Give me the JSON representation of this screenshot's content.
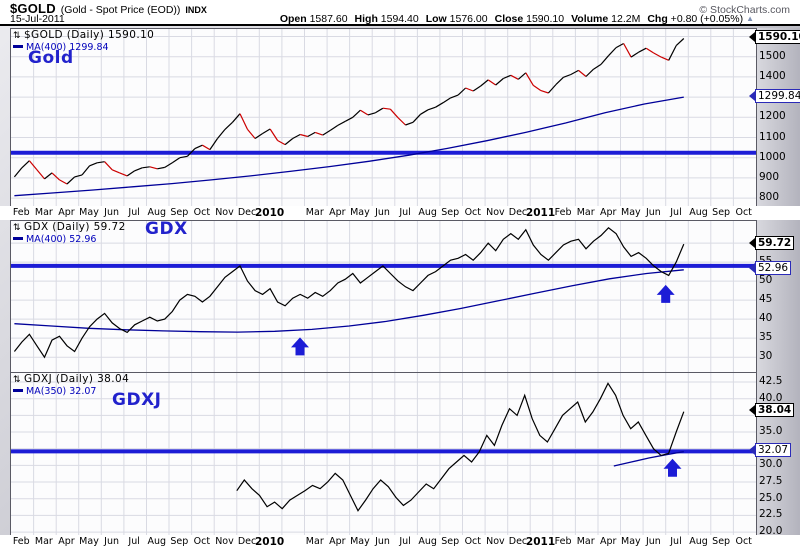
{
  "header": {
    "symbol": "$GOLD",
    "description": "(Gold - Spot Price (EOD))",
    "exchange": "INDX",
    "date": "15-Jul-2011",
    "quote_fields": [
      {
        "label": "Open",
        "value": "1587.60"
      },
      {
        "label": "High",
        "value": "1594.40"
      },
      {
        "label": "Low",
        "value": "1576.00"
      },
      {
        "label": "Close",
        "value": "1590.10"
      },
      {
        "label": "Volume",
        "value": "12.2M"
      },
      {
        "label": "Chg",
        "value": "+0.80 (+0.05%)"
      }
    ],
    "change_icon": "▲",
    "credit": "© StockCharts.com"
  },
  "colors": {
    "annotation_blue": "#1c1cd6",
    "ma_navy": "#000099",
    "price_black": "#000000",
    "price_red": "#cc0000",
    "grid": "#d9dae3"
  },
  "x_axis": {
    "labels": [
      {
        "t": "Feb",
        "s": 0
      },
      {
        "t": "Mar",
        "s": 1
      },
      {
        "t": "Apr",
        "s": 2
      },
      {
        "t": "May",
        "s": 3
      },
      {
        "t": "Jun",
        "s": 4
      },
      {
        "t": "Jul",
        "s": 5
      },
      {
        "t": "Aug",
        "s": 6
      },
      {
        "t": "Sep",
        "s": 7
      },
      {
        "t": "Oct",
        "s": 8
      },
      {
        "t": "Nov",
        "s": 9
      },
      {
        "t": "Dec",
        "s": 10
      },
      {
        "t": "2010",
        "s": 11,
        "bold": true
      },
      {
        "t": "Mar",
        "s": 13
      },
      {
        "t": "Apr",
        "s": 14
      },
      {
        "t": "May",
        "s": 15
      },
      {
        "t": "Jun",
        "s": 16
      },
      {
        "t": "Jul",
        "s": 17
      },
      {
        "t": "Aug",
        "s": 18
      },
      {
        "t": "Sep",
        "s": 19
      },
      {
        "t": "Oct",
        "s": 20
      },
      {
        "t": "Nov",
        "s": 21
      },
      {
        "t": "Dec",
        "s": 22
      },
      {
        "t": "2011",
        "s": 23,
        "bold": true
      },
      {
        "t": "Feb",
        "s": 24
      },
      {
        "t": "Mar",
        "s": 25
      },
      {
        "t": "Apr",
        "s": 26
      },
      {
        "t": "May",
        "s": 27
      },
      {
        "t": "Jun",
        "s": 28
      },
      {
        "t": "Jul",
        "s": 29
      },
      {
        "t": "Aug",
        "s": 30
      },
      {
        "t": "Sep",
        "s": 31
      },
      {
        "t": "Oct",
        "s": 32
      }
    ]
  },
  "chart_data": [
    {
      "type": "line",
      "symbol": "GOLD",
      "legend": "$GOLD (Daily) 1590.10",
      "ma_legend": "MA(400) 1299.84",
      "annotation": "Gold",
      "price_tag": "1590.10",
      "price_tag_value": 1590.1,
      "ma_tag": "1299.84",
      "ma_tag_value": 1299.84,
      "y_ticks": [
        {
          "label": "1500",
          "v": 1500
        },
        {
          "label": "1400",
          "v": 1400
        },
        {
          "label": "1200",
          "v": 1200
        },
        {
          "label": "1100",
          "v": 1100
        },
        {
          "label": "1000",
          "v": 1000
        },
        {
          "label": "900",
          "v": 900
        },
        {
          "label": "800",
          "v": 800
        }
      ],
      "y_grid": [
        1600,
        1500,
        1400,
        1300,
        1200,
        1100,
        1000,
        900,
        800
      ],
      "support_line": 1025,
      "colored_segments": true,
      "x_start_slot": 0.15,
      "x_end_slot": 29.8,
      "values": [
        905,
        950,
        985,
        940,
        895,
        925,
        890,
        870,
        905,
        915,
        960,
        975,
        980,
        940,
        925,
        910,
        935,
        950,
        955,
        945,
        952,
        975,
        1000,
        1007,
        1045,
        1062,
        1040,
        1095,
        1140,
        1175,
        1218,
        1140,
        1095,
        1120,
        1142,
        1085,
        1065,
        1095,
        1115,
        1105,
        1125,
        1112,
        1135,
        1160,
        1180,
        1200,
        1235,
        1212,
        1222,
        1245,
        1240,
        1198,
        1162,
        1175,
        1215,
        1237,
        1250,
        1272,
        1296,
        1310,
        1345,
        1330,
        1355,
        1385,
        1360,
        1392,
        1408,
        1388,
        1420,
        1358,
        1332,
        1320,
        1362,
        1398,
        1412,
        1432,
        1402,
        1438,
        1462,
        1505,
        1545,
        1565,
        1498,
        1522,
        1542,
        1518,
        1498,
        1482,
        1555,
        1590.1
      ],
      "ma_start_slot": 0.15,
      "ma_end_slot": 29.8,
      "ma_values": [
        812,
        826,
        840,
        856,
        872,
        890,
        910,
        932,
        956,
        982,
        1012,
        1046,
        1084,
        1126,
        1172,
        1222,
        1266,
        1299.84
      ],
      "arrows": []
    },
    {
      "type": "line",
      "symbol": "GDX",
      "legend": "GDX (Daily) 59.72",
      "ma_legend": "MA(400) 52.96",
      "annotation": "GDX",
      "price_tag": "59.72",
      "price_tag_value": 59.72,
      "ma_tag": "52.96",
      "ma_tag_value": 52.96,
      "y_ticks": [
        {
          "label": "55",
          "v": 55
        },
        {
          "label": "50",
          "v": 50
        },
        {
          "label": "45",
          "v": 45
        },
        {
          "label": "40",
          "v": 40
        },
        {
          "label": "35",
          "v": 35
        },
        {
          "label": "30",
          "v": 30
        }
      ],
      "y_grid": [
        60,
        55,
        50,
        45,
        40,
        35,
        30
      ],
      "support_line": 54,
      "colored_segments": false,
      "x_start_slot": 0.15,
      "x_end_slot": 29.8,
      "values": [
        31.5,
        34,
        36,
        33,
        30,
        34.5,
        35.5,
        33,
        31.5,
        35,
        38,
        40,
        41.5,
        39,
        37.5,
        36.5,
        38.5,
        39.5,
        40.5,
        39.5,
        40,
        42,
        45,
        46.5,
        46,
        44.5,
        46,
        48.5,
        51,
        52.5,
        54,
        50,
        47.5,
        46.5,
        48,
        44.5,
        43.5,
        45.5,
        46.5,
        45.5,
        47,
        46,
        47.5,
        49.5,
        50.5,
        52,
        49.5,
        51,
        52.5,
        54,
        52,
        50,
        48.5,
        47.5,
        49.5,
        51.5,
        52.5,
        54,
        55.5,
        56,
        57,
        55.5,
        57.5,
        60,
        58,
        61,
        62.5,
        61,
        63.5,
        59.5,
        57,
        55.5,
        57.5,
        59.5,
        60.5,
        61,
        58.5,
        60.5,
        62,
        64,
        62.5,
        59,
        56.5,
        57.5,
        56,
        54,
        52.5,
        51.5,
        55,
        59.72
      ],
      "ma_start_slot": 0.15,
      "ma_end_slot": 29.8,
      "ma_values": [
        38.8,
        38.2,
        37.6,
        37.2,
        36.9,
        36.7,
        36.6,
        36.8,
        37.3,
        38.2,
        39.4,
        41,
        42.8,
        44.8,
        46.8,
        48.8,
        50.6,
        52,
        52.96
      ],
      "arrows": [
        {
          "slot": 12.8,
          "tip": 35.2
        },
        {
          "slot": 29.0,
          "tip": 49.0
        }
      ]
    },
    {
      "type": "line",
      "symbol": "GDXJ",
      "legend": "GDXJ (Daily) 38.04",
      "ma_legend": "MA(350) 32.07",
      "annotation": "GDXJ",
      "price_tag": "38.04",
      "price_tag_value": 38.04,
      "ma_tag": "32.07",
      "ma_tag_value": 32.07,
      "y_ticks": [
        {
          "label": "42.5",
          "v": 42.5
        },
        {
          "label": "40.0",
          "v": 40
        },
        {
          "label": "35.0",
          "v": 35
        },
        {
          "label": "30.0",
          "v": 30
        },
        {
          "label": "27.5",
          "v": 27.5
        },
        {
          "label": "25.0",
          "v": 25
        },
        {
          "label": "22.5",
          "v": 22.5
        },
        {
          "label": "20.0",
          "v": 20
        }
      ],
      "y_grid": [
        42.5,
        40,
        37.5,
        35,
        32.5,
        30,
        27.5,
        25,
        22.5,
        20
      ],
      "support_line": 32.1,
      "colored_segments": false,
      "x_start_slot": 10.0,
      "x_end_slot": 29.8,
      "values": [
        26.2,
        27.8,
        26.5,
        25.5,
        23.8,
        24.5,
        23.5,
        24.8,
        25.5,
        26.2,
        27,
        26.5,
        27.5,
        28.8,
        27.8,
        25.5,
        23.2,
        24.8,
        26.5,
        27.8,
        26.8,
        25.2,
        24,
        24.8,
        26,
        27.2,
        26.5,
        28,
        29.5,
        30.5,
        31.5,
        30.5,
        32,
        34.5,
        33,
        36,
        38.5,
        37.5,
        40.5,
        37,
        34.5,
        33.5,
        35.5,
        37.5,
        38.5,
        39.5,
        36.5,
        38,
        40,
        42.3,
        40.5,
        37.5,
        35.5,
        36.5,
        34.5,
        32.5,
        31.5,
        31.8,
        35,
        38.04
      ],
      "ma_start_slot": 26.7,
      "ma_end_slot": 29.8,
      "ma_values": [
        29.9,
        30.5,
        31.1,
        31.6,
        32.07
      ],
      "arrows": [
        {
          "slot": 29.3,
          "tip": 31.0
        }
      ]
    }
  ]
}
